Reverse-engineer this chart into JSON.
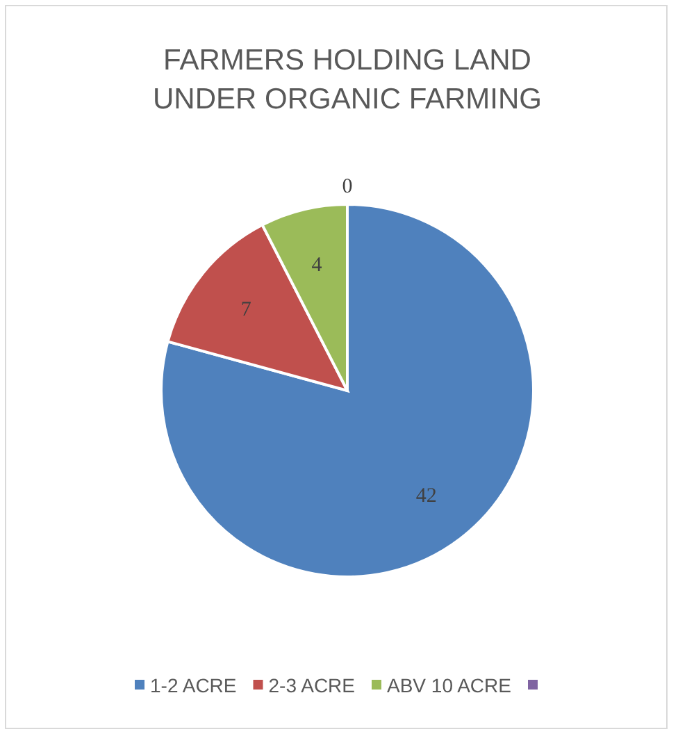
{
  "chart_data": {
    "type": "pie",
    "title": "FARMERS HOLDING LAND UNDER ORGANIC FARMING",
    "categories": [
      "1-2 ACRE",
      "2-3 ACRE",
      "ABV 10 ACRE",
      null
    ],
    "values": [
      42,
      7,
      4,
      0
    ],
    "colors": [
      "#4f81bd",
      "#c0504d",
      "#9bbb59",
      "#8064a2"
    ],
    "value_labels": [
      "42",
      "7",
      "4",
      "0"
    ],
    "legend": "bottom"
  }
}
